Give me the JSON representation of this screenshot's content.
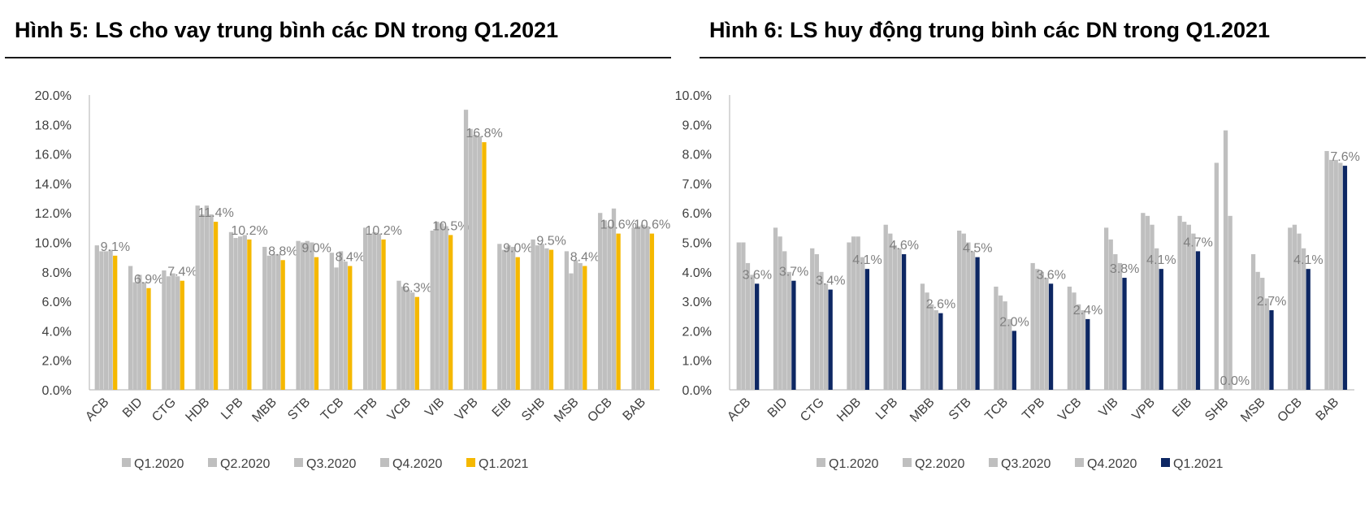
{
  "charts": [
    {
      "title": "Hình 5: LS cho vay trung bình các DN trong Q1.2021",
      "chart_data": {
        "type": "bar",
        "title": "Hình 5: LS cho vay trung bình các DN trong Q1.2021",
        "xlabel": "",
        "ylabel": "",
        "ylim": [
          0,
          20
        ],
        "yticks": [
          "0.0%",
          "2.0%",
          "4.0%",
          "6.0%",
          "8.0%",
          "10.0%",
          "12.0%",
          "14.0%",
          "16.0%",
          "18.0%",
          "20.0%"
        ],
        "grid": false,
        "legend_position": "bottom",
        "categories": [
          "ACB",
          "BID",
          "CTG",
          "HDB",
          "LPB",
          "MBB",
          "STB",
          "TCB",
          "TPB",
          "VCB",
          "VIB",
          "VPB",
          "EIB",
          "SHB",
          "MSB",
          "OCB",
          "BAB"
        ],
        "series": [
          {
            "name": "Q1.2020",
            "color": "#bfbfbf",
            "values": [
              9.8,
              8.4,
              8.1,
              12.5,
              10.7,
              9.7,
              10.1,
              9.3,
              11.0,
              7.4,
              10.8,
              19.0,
              9.9,
              10.2,
              9.4,
              12.0,
              11.0
            ]
          },
          {
            "name": "Q2.2020",
            "color": "#bfbfbf",
            "values": [
              9.4,
              7.3,
              7.7,
              11.9,
              10.3,
              9.1,
              10.0,
              8.3,
              10.6,
              7.0,
              11.4,
              17.7,
              9.5,
              9.8,
              7.9,
              11.5,
              11.1
            ]
          },
          {
            "name": "Q3.2020",
            "color": "#bfbfbf",
            "values": [
              9.4,
              7.8,
              7.9,
              12.5,
              10.4,
              9.2,
              10.1,
              9.4,
              10.7,
              6.8,
              11.3,
              17.3,
              9.8,
              9.9,
              8.8,
              11.1,
              11.2
            ]
          },
          {
            "name": "Q4.2020",
            "color": "#bfbfbf",
            "values": [
              9.5,
              7.3,
              7.7,
              11.9,
              10.5,
              9.2,
              10.0,
              8.7,
              10.6,
              6.6,
              11.1,
              17.2,
              9.7,
              9.6,
              8.6,
              12.3,
              11.1
            ]
          },
          {
            "name": "Q1.2021",
            "color": "#f5b800",
            "values": [
              9.1,
              6.9,
              7.4,
              11.4,
              10.2,
              8.8,
              9.0,
              8.4,
              10.2,
              6.3,
              10.5,
              16.8,
              9.0,
              9.5,
              8.4,
              10.6,
              10.6
            ]
          }
        ],
        "data_labels": [
          "9.1%",
          "6.9%",
          "7.4%",
          "11.4%",
          "10.2%",
          "8.8%",
          "9.0%",
          "8.4%",
          "10.2%",
          "6.3%",
          "10.5%",
          "16.8%",
          "9.0%",
          "9.5%",
          "8.4%",
          "10.6%",
          "10.6%"
        ]
      }
    },
    {
      "title": "Hình 6: LS huy động trung bình các DN trong Q1.2021",
      "chart_data": {
        "type": "bar",
        "title": "Hình 6: LS huy động trung bình các DN trong Q1.2021",
        "xlabel": "",
        "ylabel": "",
        "ylim": [
          0,
          10
        ],
        "yticks": [
          "0.0%",
          "1.0%",
          "2.0%",
          "3.0%",
          "4.0%",
          "5.0%",
          "6.0%",
          "7.0%",
          "8.0%",
          "9.0%",
          "10.0%"
        ],
        "grid": false,
        "legend_position": "bottom",
        "categories": [
          "ACB",
          "BID",
          "CTG",
          "HDB",
          "LPB",
          "MBB",
          "STB",
          "TCB",
          "TPB",
          "VCB",
          "VIB",
          "VPB",
          "EIB",
          "SHB",
          "MSB",
          "OCB",
          "BAB"
        ],
        "series": [
          {
            "name": "Q1.2020",
            "color": "#bfbfbf",
            "values": [
              5.0,
              5.5,
              4.8,
              5.0,
              5.6,
              3.6,
              5.4,
              3.5,
              4.3,
              3.5,
              5.5,
              6.0,
              5.9,
              7.7,
              4.6,
              5.5,
              8.1
            ]
          },
          {
            "name": "Q2.2020",
            "color": "#bfbfbf",
            "values": [
              5.0,
              5.2,
              4.6,
              5.2,
              5.3,
              3.3,
              5.3,
              3.2,
              4.1,
              3.3,
              5.1,
              5.9,
              5.7,
              0.0,
              4.0,
              5.6,
              7.8
            ]
          },
          {
            "name": "Q3.2020",
            "color": "#bfbfbf",
            "values": [
              4.3,
              4.7,
              4.0,
              5.2,
              4.9,
              2.9,
              5.0,
              3.0,
              4.0,
              2.9,
              4.6,
              5.6,
              5.6,
              8.8,
              3.8,
              5.3,
              7.8
            ]
          },
          {
            "name": "Q4.2020",
            "color": "#bfbfbf",
            "values": [
              3.9,
              4.0,
              3.6,
              4.5,
              4.8,
              2.7,
              4.7,
              2.4,
              3.8,
              2.7,
              4.3,
              4.8,
              5.3,
              5.9,
              3.1,
              4.8,
              7.7
            ]
          },
          {
            "name": "Q1.2021",
            "color": "#0d2763",
            "values": [
              3.6,
              3.7,
              3.4,
              4.1,
              4.6,
              2.6,
              4.5,
              2.0,
              3.6,
              2.4,
              3.8,
              4.1,
              4.7,
              0.0,
              2.7,
              4.1,
              7.6
            ]
          }
        ],
        "data_labels": [
          "3.6%",
          "3.7%",
          "3.4%",
          "4.1%",
          "4.6%",
          "2.6%",
          "4.5%",
          "2.0%",
          "3.6%",
          "2.4%",
          "3.8%",
          "4.1%",
          "4.7%",
          "0.0%",
          "2.7%",
          "4.1%",
          "7.6%"
        ]
      }
    }
  ]
}
